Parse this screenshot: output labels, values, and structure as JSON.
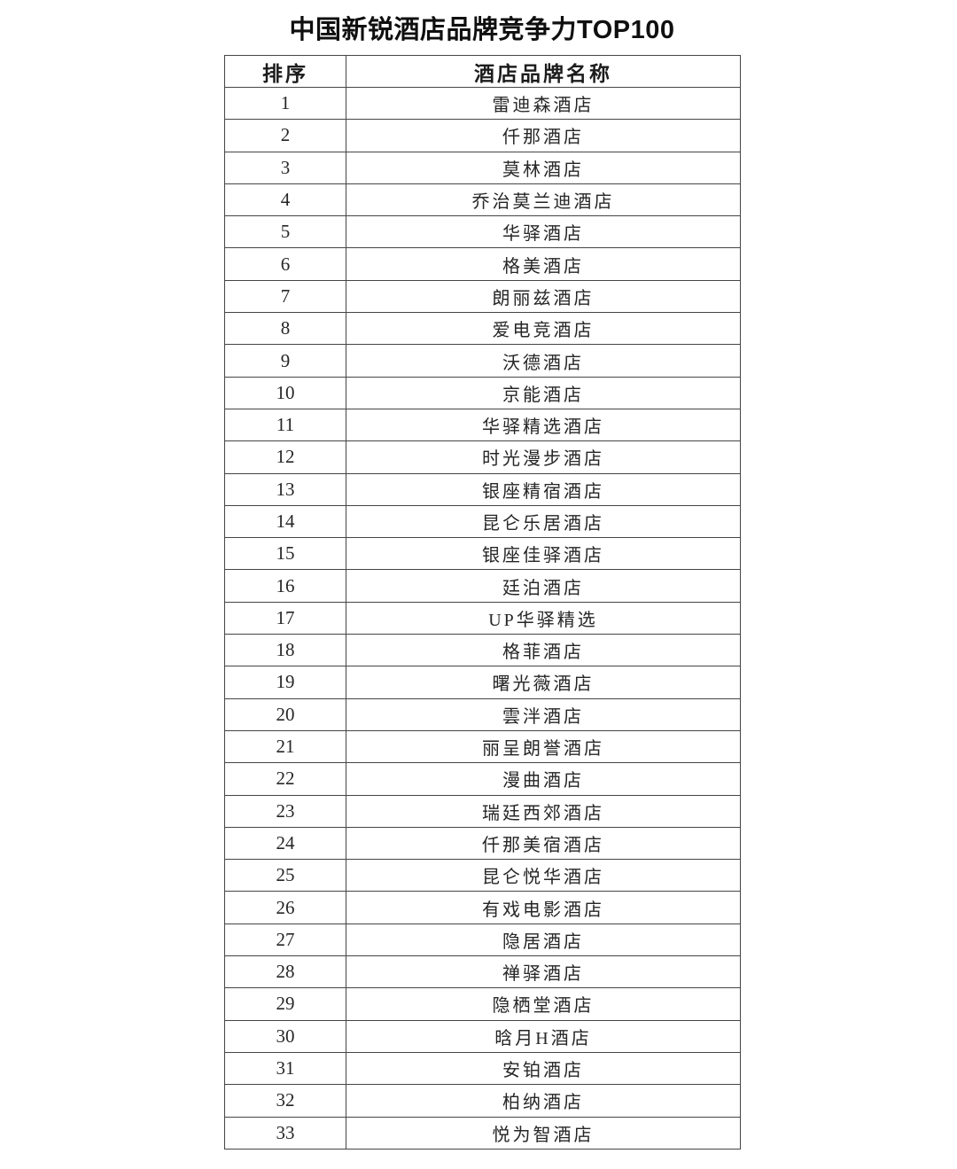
{
  "title": "中国新锐酒店品牌竞争力TOP100",
  "table": {
    "headers": {
      "rank": "排序",
      "brand": "酒店品牌名称"
    },
    "rows": [
      {
        "rank": "1",
        "brand": "雷迪森酒店"
      },
      {
        "rank": "2",
        "brand": "仟那酒店"
      },
      {
        "rank": "3",
        "brand": "莫林酒店"
      },
      {
        "rank": "4",
        "brand": "乔治莫兰迪酒店"
      },
      {
        "rank": "5",
        "brand": "华驿酒店"
      },
      {
        "rank": "6",
        "brand": "格美酒店"
      },
      {
        "rank": "7",
        "brand": "朗丽兹酒店"
      },
      {
        "rank": "8",
        "brand": "爱电竞酒店"
      },
      {
        "rank": "9",
        "brand": "沃德酒店"
      },
      {
        "rank": "10",
        "brand": "京能酒店"
      },
      {
        "rank": "11",
        "brand": "华驿精选酒店"
      },
      {
        "rank": "12",
        "brand": "时光漫步酒店"
      },
      {
        "rank": "13",
        "brand": "银座精宿酒店"
      },
      {
        "rank": "14",
        "brand": "昆仑乐居酒店"
      },
      {
        "rank": "15",
        "brand": "银座佳驿酒店"
      },
      {
        "rank": "16",
        "brand": "廷泊酒店"
      },
      {
        "rank": "17",
        "brand": "UP华驿精选"
      },
      {
        "rank": "18",
        "brand": "格菲酒店"
      },
      {
        "rank": "19",
        "brand": "曙光薇酒店"
      },
      {
        "rank": "20",
        "brand": "雲泮酒店"
      },
      {
        "rank": "21",
        "brand": "丽呈朗誉酒店"
      },
      {
        "rank": "22",
        "brand": "漫曲酒店"
      },
      {
        "rank": "23",
        "brand": "瑞廷西郊酒店"
      },
      {
        "rank": "24",
        "brand": "仟那美宿酒店"
      },
      {
        "rank": "25",
        "brand": "昆仑悦华酒店"
      },
      {
        "rank": "26",
        "brand": "有戏电影酒店"
      },
      {
        "rank": "27",
        "brand": "隐居酒店"
      },
      {
        "rank": "28",
        "brand": "禅驿酒店"
      },
      {
        "rank": "29",
        "brand": "隐栖堂酒店"
      },
      {
        "rank": "30",
        "brand": "晗月H酒店"
      },
      {
        "rank": "31",
        "brand": "安铂酒店"
      },
      {
        "rank": "32",
        "brand": "柏纳酒店"
      },
      {
        "rank": "33",
        "brand": "悦为智酒店"
      }
    ]
  },
  "colors": {
    "background": "#ffffff",
    "border": "#454545",
    "cell_text": "#262626",
    "title_text": "#0f0f0f"
  }
}
